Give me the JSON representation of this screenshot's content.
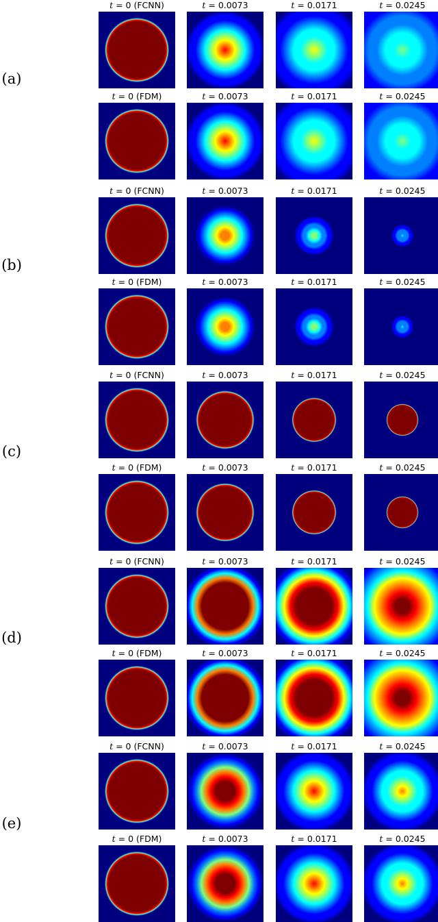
{
  "figure": {
    "groups": [
      {
        "label": "(a)",
        "rows": [
          {
            "method": "FCNN",
            "panels": [
              {
                "title_prefix": "t",
                "title_value": "= 0 (FCNN)",
                "profile": {
                  "peak": 1.0,
                  "radius": 0.42,
                  "sharp": true
                }
              },
              {
                "title_prefix": "t",
                "title_value": "= 0.0073",
                "profile": {
                  "peak": 0.82,
                  "radius": 0.58,
                  "sharp": false,
                  "spread": 0.42
                }
              },
              {
                "title_prefix": "t",
                "title_value": "= 0.0171",
                "profile": {
                  "peak": 0.6,
                  "radius": 0.8,
                  "sharp": false,
                  "spread": 0.6
                }
              },
              {
                "title_prefix": "t",
                "title_value": "= 0.0245",
                "profile": {
                  "peak": 0.5,
                  "radius": 1.0,
                  "sharp": false,
                  "spread": 0.75
                }
              }
            ]
          },
          {
            "method": "FDM",
            "panels": [
              {
                "title_prefix": "t",
                "title_value": "= 0 (FDM)",
                "profile": {
                  "peak": 1.0,
                  "radius": 0.42,
                  "sharp": true
                }
              },
              {
                "title_prefix": "t",
                "title_value": "= 0.0073",
                "profile": {
                  "peak": 0.82,
                  "radius": 0.58,
                  "sharp": false,
                  "spread": 0.42
                }
              },
              {
                "title_prefix": "t",
                "title_value": "= 0.0171",
                "profile": {
                  "peak": 0.6,
                  "radius": 0.8,
                  "sharp": false,
                  "spread": 0.6
                }
              },
              {
                "title_prefix": "t",
                "title_value": "= 0.0245",
                "profile": {
                  "peak": 0.5,
                  "radius": 1.0,
                  "sharp": false,
                  "spread": 0.75
                }
              }
            ]
          }
        ]
      },
      {
        "label": "(b)",
        "rows": [
          {
            "method": "FCNN",
            "panels": [
              {
                "title_prefix": "t",
                "title_value": "= 0 (FCNN)",
                "profile": {
                  "peak": 1.0,
                  "radius": 0.42,
                  "sharp": true
                }
              },
              {
                "title_prefix": "t",
                "title_value": "= 0.0073",
                "profile": {
                  "peak": 0.8,
                  "radius": 0.5,
                  "sharp": false,
                  "spread": 0.3
                }
              },
              {
                "title_prefix": "t",
                "title_value": "= 0.0171",
                "profile": {
                  "peak": 0.55,
                  "radius": 0.33,
                  "sharp": false,
                  "spread": 0.2
                }
              },
              {
                "title_prefix": "t",
                "title_value": "= 0.0245",
                "profile": {
                  "peak": 0.35,
                  "radius": 0.22,
                  "sharp": false,
                  "spread": 0.14
                }
              }
            ]
          },
          {
            "method": "FDM",
            "panels": [
              {
                "title_prefix": "t",
                "title_value": "= 0 (FDM)",
                "profile": {
                  "peak": 1.0,
                  "radius": 0.42,
                  "sharp": true
                }
              },
              {
                "title_prefix": "t",
                "title_value": "= 0.0073",
                "profile": {
                  "peak": 0.8,
                  "radius": 0.5,
                  "sharp": false,
                  "spread": 0.3
                }
              },
              {
                "title_prefix": "t",
                "title_value": "= 0.0171",
                "profile": {
                  "peak": 0.55,
                  "radius": 0.33,
                  "sharp": false,
                  "spread": 0.2
                }
              },
              {
                "title_prefix": "t",
                "title_value": "= 0.0245",
                "profile": {
                  "peak": 0.35,
                  "radius": 0.22,
                  "sharp": false,
                  "spread": 0.14
                }
              }
            ]
          }
        ]
      },
      {
        "label": "(c)",
        "rows": [
          {
            "method": "FCNN",
            "panels": [
              {
                "title_prefix": "t",
                "title_value": "= 0 (FCNN)",
                "profile": {
                  "peak": 1.0,
                  "radius": 0.42,
                  "sharp": true
                }
              },
              {
                "title_prefix": "t",
                "title_value": "= 0.0073",
                "profile": {
                  "peak": 1.0,
                  "radius": 0.38,
                  "sharp": true
                }
              },
              {
                "title_prefix": "t",
                "title_value": "= 0.0171",
                "profile": {
                  "peak": 1.0,
                  "radius": 0.29,
                  "sharp": true
                }
              },
              {
                "title_prefix": "t",
                "title_value": "= 0.0245",
                "profile": {
                  "peak": 1.0,
                  "radius": 0.21,
                  "sharp": true
                }
              }
            ]
          },
          {
            "method": "FDM",
            "panels": [
              {
                "title_prefix": "t",
                "title_value": "= 0 (FDM)",
                "profile": {
                  "peak": 1.0,
                  "radius": 0.42,
                  "sharp": true
                }
              },
              {
                "title_prefix": "t",
                "title_value": "= 0.0073",
                "profile": {
                  "peak": 1.0,
                  "radius": 0.38,
                  "sharp": true
                }
              },
              {
                "title_prefix": "t",
                "title_value": "= 0.0171",
                "profile": {
                  "peak": 1.0,
                  "radius": 0.29,
                  "sharp": true
                }
              },
              {
                "title_prefix": "t",
                "title_value": "= 0.0245",
                "profile": {
                  "peak": 1.0,
                  "radius": 0.21,
                  "sharp": true
                }
              }
            ]
          }
        ]
      },
      {
        "label": "(d)",
        "rows": [
          {
            "method": "FCNN",
            "panels": [
              {
                "title_prefix": "t",
                "title_value": "= 0 (FCNN)",
                "profile": {
                  "peak": 1.0,
                  "radius": 0.42,
                  "sharp": true
                }
              },
              {
                "title_prefix": "t",
                "title_value": "= 0.0073",
                "profile": {
                  "peak": 1.0,
                  "radius": 0.55,
                  "sharp": false,
                  "spread": 0.34,
                  "core": 0.6
                }
              },
              {
                "title_prefix": "t",
                "title_value": "= 0.0171",
                "profile": {
                  "peak": 1.0,
                  "radius": 0.7,
                  "sharp": false,
                  "spread": 0.48,
                  "core": 0.35
                }
              },
              {
                "title_prefix": "t",
                "title_value": "= 0.0245",
                "profile": {
                  "peak": 0.95,
                  "radius": 0.82,
                  "sharp": false,
                  "spread": 0.6,
                  "core": 0.2
                }
              }
            ]
          },
          {
            "method": "FDM",
            "panels": [
              {
                "title_prefix": "t",
                "title_value": "= 0 (FDM)",
                "profile": {
                  "peak": 1.0,
                  "radius": 0.42,
                  "sharp": true
                }
              },
              {
                "title_prefix": "t",
                "title_value": "= 0.0073",
                "profile": {
                  "peak": 1.0,
                  "radius": 0.55,
                  "sharp": false,
                  "spread": 0.34,
                  "core": 0.6
                }
              },
              {
                "title_prefix": "t",
                "title_value": "= 0.0171",
                "profile": {
                  "peak": 1.0,
                  "radius": 0.7,
                  "sharp": false,
                  "spread": 0.48,
                  "core": 0.35
                }
              },
              {
                "title_prefix": "t",
                "title_value": "= 0.0245",
                "profile": {
                  "peak": 0.95,
                  "radius": 0.82,
                  "sharp": false,
                  "spread": 0.6,
                  "core": 0.2
                }
              }
            ]
          }
        ]
      },
      {
        "label": "(e)",
        "rows": [
          {
            "method": "FCNN",
            "panels": [
              {
                "title_prefix": "t",
                "title_value": "= 0 (FCNN)",
                "profile": {
                  "peak": 1.0,
                  "radius": 0.42,
                  "sharp": true
                }
              },
              {
                "title_prefix": "t",
                "title_value": "= 0.0073",
                "profile": {
                  "peak": 0.97,
                  "radius": 0.56,
                  "sharp": false,
                  "spread": 0.38,
                  "core": 0.3
                }
              },
              {
                "title_prefix": "t",
                "title_value": "= 0.0171",
                "profile": {
                  "peak": 0.86,
                  "radius": 0.6,
                  "sharp": false,
                  "spread": 0.42
                }
              },
              {
                "title_prefix": "t",
                "title_value": "= 0.0245",
                "profile": {
                  "peak": 0.74,
                  "radius": 0.6,
                  "sharp": false,
                  "spread": 0.44
                }
              }
            ]
          },
          {
            "method": "FDM",
            "panels": [
              {
                "title_prefix": "t",
                "title_value": "= 0 (FDM)",
                "profile": {
                  "peak": 1.0,
                  "radius": 0.42,
                  "sharp": true
                }
              },
              {
                "title_prefix": "t",
                "title_value": "= 0.0073",
                "profile": {
                  "peak": 0.97,
                  "radius": 0.56,
                  "sharp": false,
                  "spread": 0.38,
                  "core": 0.3
                }
              },
              {
                "title_prefix": "t",
                "title_value": "= 0.0171",
                "profile": {
                  "peak": 0.86,
                  "radius": 0.6,
                  "sharp": false,
                  "spread": 0.42
                }
              },
              {
                "title_prefix": "t",
                "title_value": "= 0.0245",
                "profile": {
                  "peak": 0.74,
                  "radius": 0.6,
                  "sharp": false,
                  "spread": 0.44
                }
              }
            ]
          }
        ]
      }
    ],
    "colormap": [
      "#00007f",
      "#0000ff",
      "#007fff",
      "#00ffff",
      "#7fff7f",
      "#ffff00",
      "#ff7f00",
      "#ff0000",
      "#7f0000"
    ]
  }
}
